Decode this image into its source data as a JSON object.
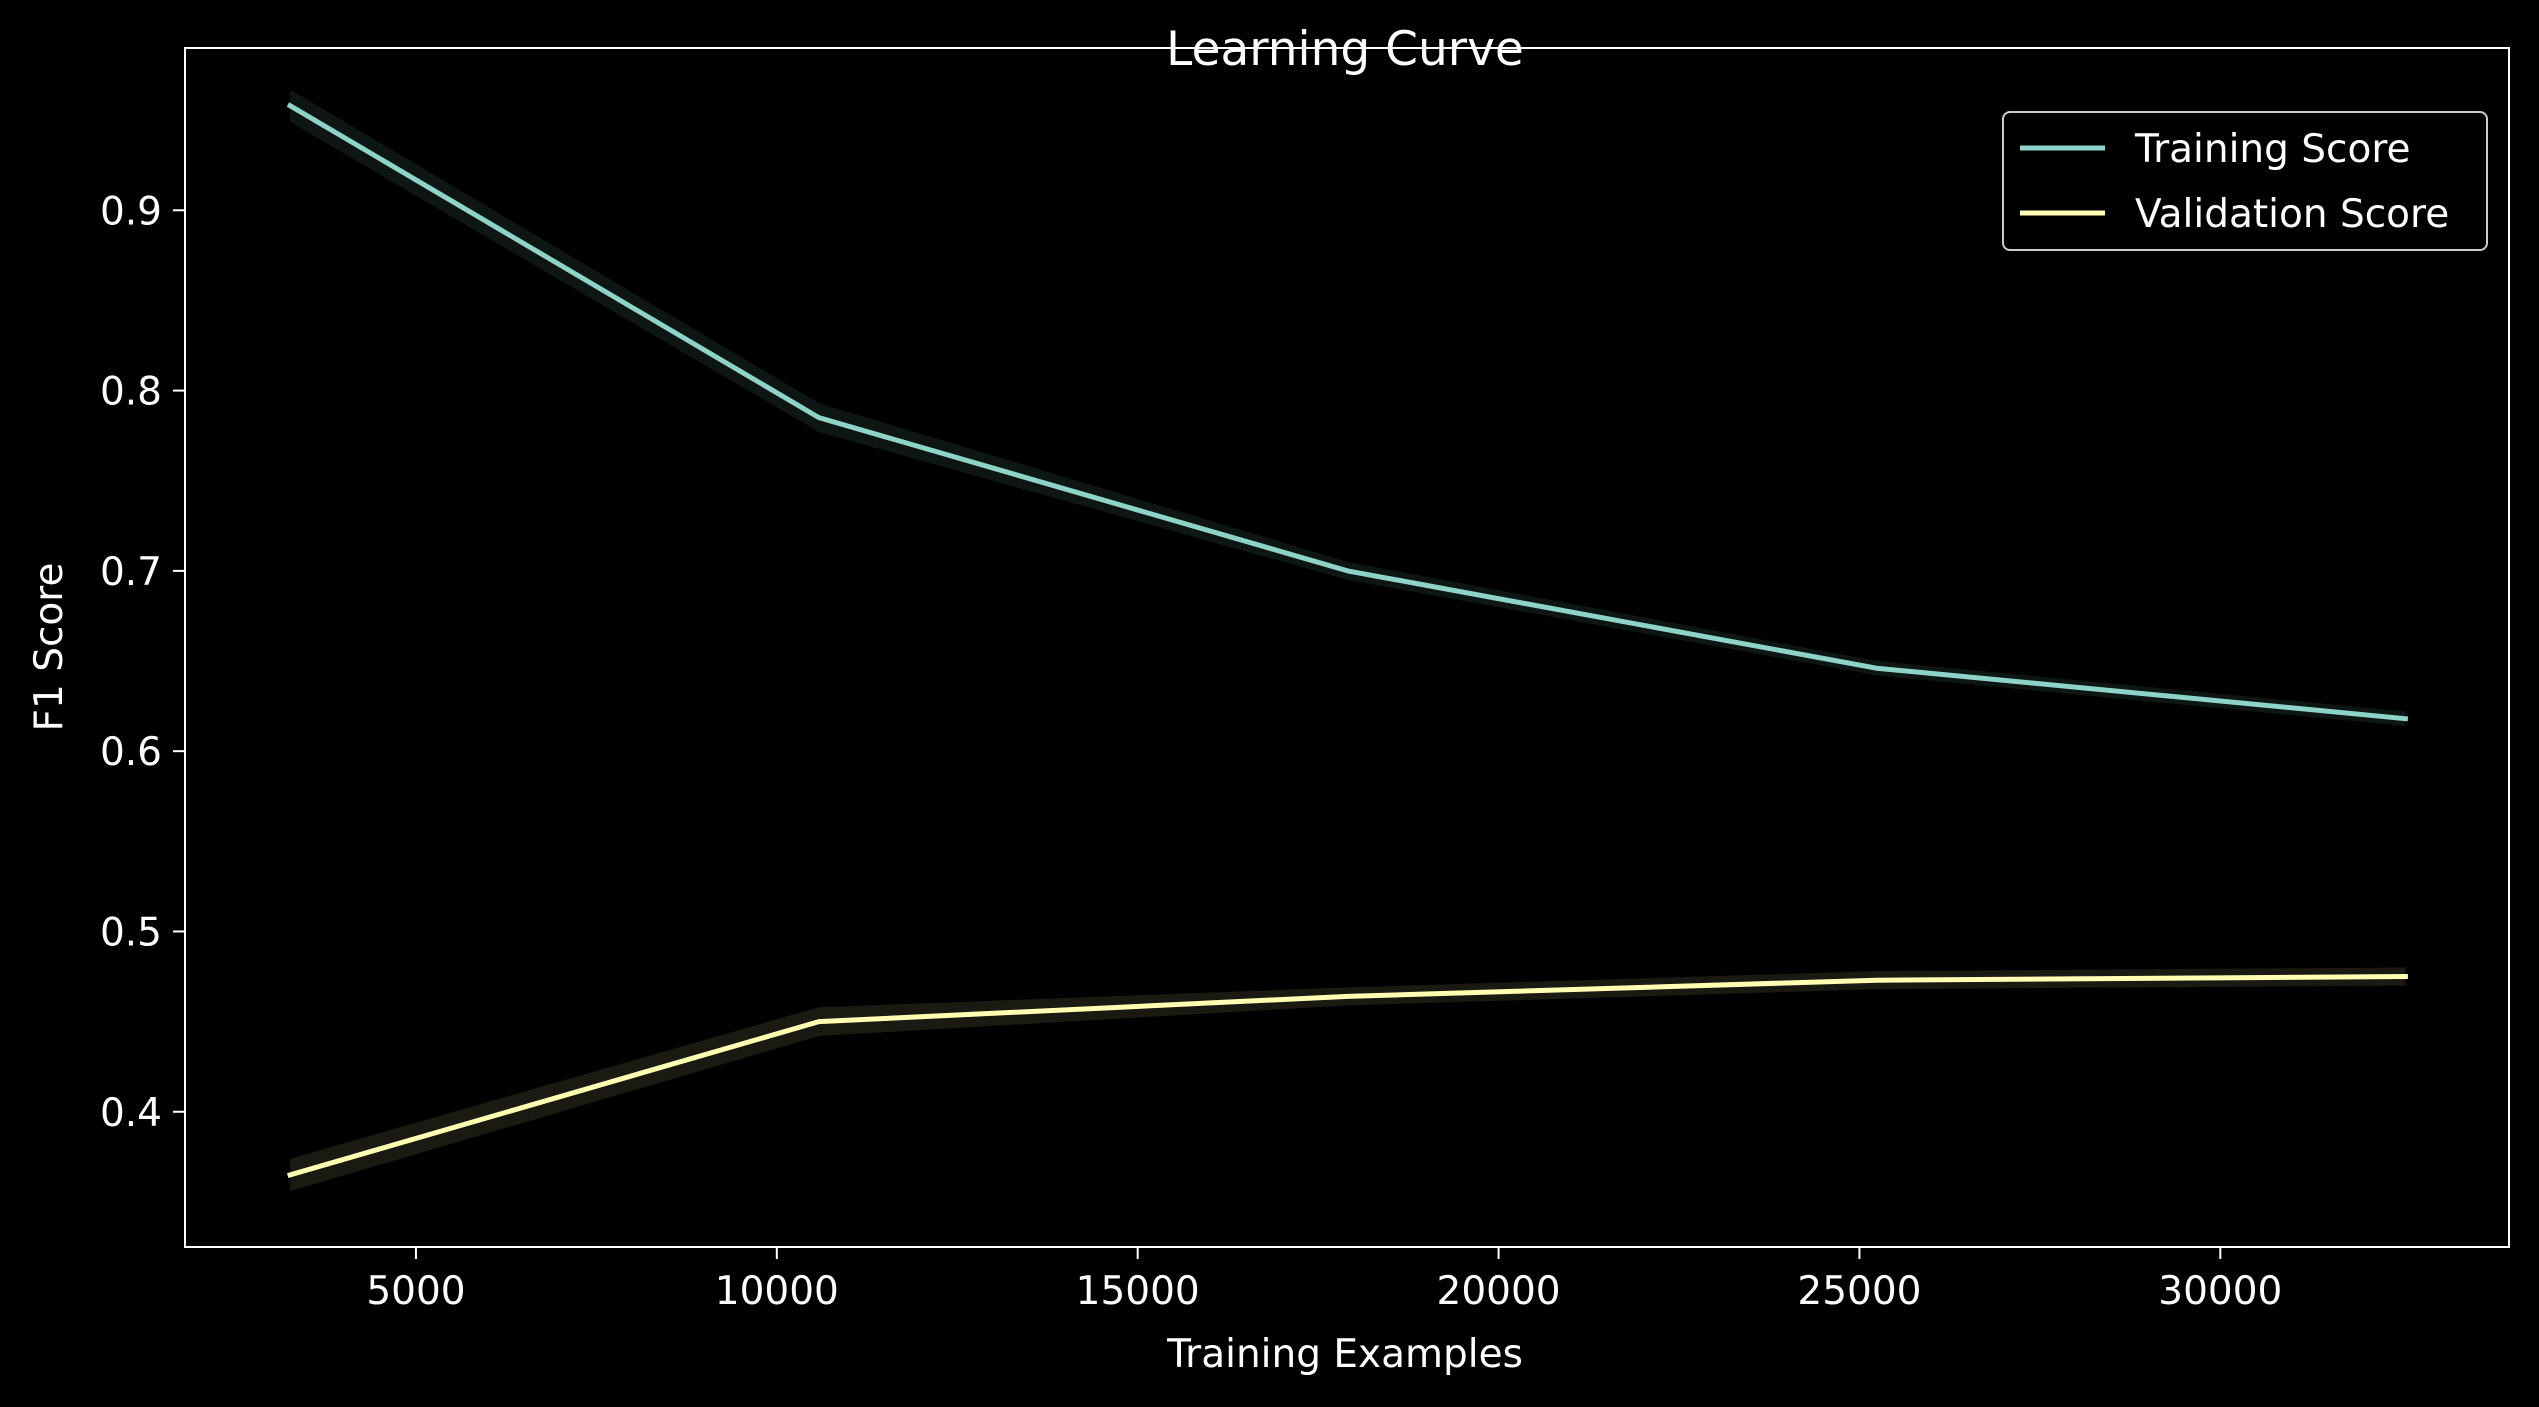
{
  "chart_data": {
    "type": "line",
    "title": "Learning Curve",
    "xlabel": "Training Examples",
    "ylabel": "F1 Score",
    "xlim": [
      1800,
      34000
    ],
    "ylim": [
      0.325,
      0.99
    ],
    "xticks": [
      5000,
      10000,
      15000,
      20000,
      25000,
      30000
    ],
    "xtick_labels": [
      "5000",
      "10000",
      "15000",
      "20000",
      "25000",
      "30000"
    ],
    "yticks": [
      0.4,
      0.5,
      0.6,
      0.7,
      0.8,
      0.9
    ],
    "ytick_labels": [
      "0.4",
      "0.5",
      "0.6",
      "0.7",
      "0.8",
      "0.9"
    ],
    "grid": false,
    "legend_position": "top-right",
    "x": [
      3256,
      10583,
      17910,
      25237,
      32564
    ],
    "series": [
      {
        "name": "Training Score",
        "color": "#8dd3c7",
        "values": [
          0.958,
          0.785,
          0.7,
          0.646,
          0.618
        ],
        "std": [
          0.009,
          0.008,
          0.005,
          0.004,
          0.004
        ]
      },
      {
        "name": "Validation Score",
        "color": "#ffffb3",
        "values": [
          0.365,
          0.45,
          0.464,
          0.473,
          0.475
        ],
        "std": [
          0.009,
          0.008,
          0.005,
          0.005,
          0.005
        ]
      }
    ]
  }
}
